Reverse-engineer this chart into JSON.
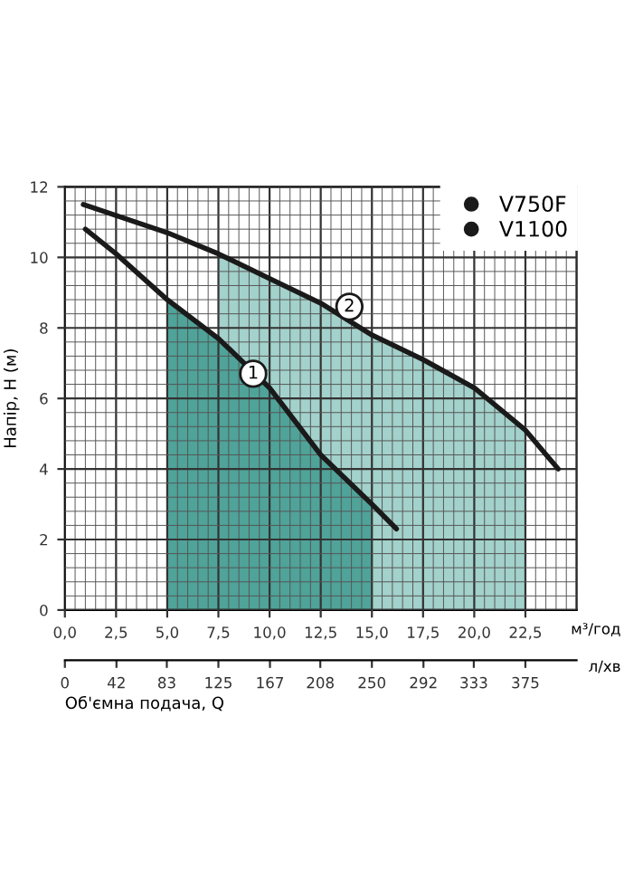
{
  "chart_data": {
    "type": "line",
    "xlabel": "Об'ємна подача, Q",
    "ylabel": "Напір, Н (м)",
    "series": [
      {
        "type": "area",
        "color": "#a3d1cb",
        "x": [
          7.5,
          10,
          12.5,
          15,
          17.5,
          20,
          22.5
        ],
        "values": [
          10.1,
          9.4,
          8.7,
          7.8,
          7.1,
          6.3,
          5.1
        ]
      },
      {
        "type": "area",
        "color": "#4fa399",
        "x": [
          5,
          7.5,
          10,
          12.5,
          15
        ],
        "values": [
          8.8,
          7.7,
          6.3,
          4.4,
          3.0
        ]
      },
      {
        "name": "V750F",
        "color": "#1a1a1a",
        "x": [
          1,
          2.5,
          5,
          7.5,
          10,
          12.5,
          15,
          16.2
        ],
        "values": [
          10.8,
          10.1,
          8.8,
          7.7,
          6.3,
          4.4,
          3.0,
          2.3
        ]
      },
      {
        "name": "V1100",
        "color": "#1a1a1a",
        "x": [
          0.9,
          5,
          7.5,
          10,
          12.5,
          15,
          17.5,
          20,
          22.5,
          24.1
        ],
        "values": [
          11.5,
          10.7,
          10.1,
          9.4,
          8.7,
          7.8,
          7.1,
          6.3,
          5.1,
          4.0
        ]
      }
    ],
    "xlim": [
      0,
      25
    ],
    "xticks": [
      {
        "value": 0,
        "label": "0,0"
      },
      {
        "value": 2.5,
        "label": "2,5"
      },
      {
        "value": 5,
        "label": "5,0"
      },
      {
        "value": 7.5,
        "label": "7,5"
      },
      {
        "value": 10,
        "label": "10,0"
      },
      {
        "value": 12.5,
        "label": "12,5"
      },
      {
        "value": 15,
        "label": "15,0"
      },
      {
        "value": 17.5,
        "label": "17,5"
      },
      {
        "value": 20,
        "label": "20,0"
      },
      {
        "value": 22.5,
        "label": "22,5"
      }
    ],
    "x2lim": [
      0,
      416.7
    ],
    "x2ticks": [
      0,
      42,
      83,
      125,
      167,
      208,
      250,
      292,
      333,
      375
    ],
    "ylim": [
      0,
      12
    ],
    "yticks": [
      0,
      2,
      4,
      6,
      8,
      10,
      12
    ],
    "annotations": [
      {
        "text": "1",
        "x": 9.2,
        "y": 6.7
      },
      {
        "text": "2",
        "x": 13.9,
        "y": 8.6
      },
      "м³/год",
      "л/хв"
    ],
    "grid": true,
    "legend": "top right",
    "line_style": "solid",
    "marker": "none"
  }
}
